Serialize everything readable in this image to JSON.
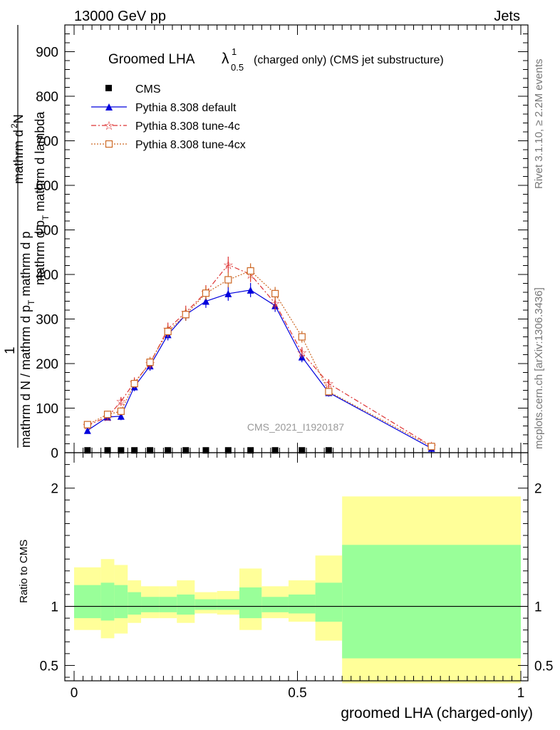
{
  "header": {
    "left": "13000 GeV pp",
    "right": "Jets"
  },
  "side": {
    "rivet": "Rivet 3.1.10, ≥ 2.2M events",
    "mcplots": "mcplots.cern.ch [arXiv:1306.3436]"
  },
  "chart_data": [
    {
      "type": "line",
      "title": {
        "main": "Groomed LHA",
        "symbol": "λ",
        "sup": "1",
        "sub": "0.5",
        "rest": "(charged only) (CMS jet substructure)"
      },
      "ylabel": {
        "numerator": "1",
        "denominator": "mathrm d N / mathrm d p",
        "denominator_sub": "T",
        "denominator_rest": "mathrm d p",
        "rhs_top": "mathrm d",
        "rhs_top_sup": "2",
        "rhs_top_rest": "N",
        "rhs_bottom": "mathrm d p",
        "rhs_bottom_sub": "T",
        "rhs_bottom_rest": " mathrm d lambda"
      },
      "xlim": [
        -0.02,
        1.02
      ],
      "ylim": [
        0,
        960
      ],
      "yticks": [
        0,
        100,
        200,
        300,
        400,
        500,
        600,
        700,
        800,
        900
      ],
      "ytick_labels": [
        "0",
        "100",
        "200",
        "300",
        "400",
        "500",
        "600",
        "700",
        "800",
        "900"
      ],
      "watermark": "CMS_2021_I1920187",
      "legend_position": "top-left",
      "x": [
        0.03,
        0.075,
        0.105,
        0.135,
        0.17,
        0.21,
        0.25,
        0.295,
        0.345,
        0.395,
        0.45,
        0.51,
        0.57,
        0.8
      ],
      "series": [
        {
          "name": "CMS",
          "color": "#000000",
          "marker": "square",
          "values": [
            2,
            2,
            2,
            2,
            2,
            2,
            2,
            2,
            2,
            2,
            2,
            2,
            2,
            null
          ]
        },
        {
          "name": "Pythia 8.308 default",
          "color": "#0000dd",
          "marker": "triangle",
          "linestyle": "solid",
          "values": [
            50,
            80,
            82,
            148,
            195,
            265,
            310,
            340,
            357,
            365,
            330,
            215,
            135,
            10
          ],
          "errors": [
            5,
            8,
            9,
            10,
            11,
            13,
            14,
            15,
            16,
            16,
            14,
            12,
            9,
            5
          ]
        },
        {
          "name": "Pythia 8.308 tune-4c",
          "color": "#dd3333",
          "marker": "star",
          "linestyle": "dashdot",
          "values": [
            62,
            80,
            115,
            158,
            200,
            278,
            315,
            360,
            422,
            400,
            335,
            225,
            155,
            15
          ],
          "errors": [
            5,
            8,
            10,
            11,
            12,
            14,
            15,
            16,
            18,
            17,
            15,
            12,
            10,
            5
          ]
        },
        {
          "name": "Pythia 8.308 tune-4cx",
          "color": "#cc6622",
          "marker": "open-square",
          "linestyle": "dotted",
          "values": [
            63,
            86,
            93,
            155,
            203,
            272,
            310,
            358,
            388,
            408,
            357,
            260,
            137,
            14
          ],
          "errors": [
            5,
            8,
            9,
            10,
            12,
            13,
            14,
            15,
            17,
            17,
            15,
            13,
            9,
            5
          ]
        }
      ]
    },
    {
      "type": "area",
      "ylabel": "Ratio to CMS",
      "xlabel": "groomed LHA (charged-only)",
      "ylim": [
        0.37,
        2.3
      ],
      "yticks": [
        0.5,
        1,
        2
      ],
      "ytick_labels": [
        "0.5",
        "1",
        "2"
      ],
      "xticks": [
        0,
        0.5,
        1
      ],
      "xtick_labels": [
        "0",
        "0.5",
        "1"
      ],
      "reference_line": 1,
      "bins": [
        {
          "x0": 0.0,
          "x1": 0.06,
          "inner": [
            0.9,
            1.18
          ],
          "outer": [
            0.8,
            1.33
          ]
        },
        {
          "x0": 0.06,
          "x1": 0.09,
          "inner": [
            0.88,
            1.2
          ],
          "outer": [
            0.73,
            1.4
          ]
        },
        {
          "x0": 0.09,
          "x1": 0.12,
          "inner": [
            0.9,
            1.18
          ],
          "outer": [
            0.77,
            1.35
          ]
        },
        {
          "x0": 0.12,
          "x1": 0.15,
          "inner": [
            0.93,
            1.12
          ],
          "outer": [
            0.86,
            1.22
          ]
        },
        {
          "x0": 0.15,
          "x1": 0.19,
          "inner": [
            0.95,
            1.08
          ],
          "outer": [
            0.9,
            1.17
          ]
        },
        {
          "x0": 0.19,
          "x1": 0.23,
          "inner": [
            0.95,
            1.08
          ],
          "outer": [
            0.9,
            1.17
          ]
        },
        {
          "x0": 0.23,
          "x1": 0.27,
          "inner": [
            0.93,
            1.1
          ],
          "outer": [
            0.86,
            1.22
          ]
        },
        {
          "x0": 0.27,
          "x1": 0.32,
          "inner": [
            0.97,
            1.06
          ],
          "outer": [
            0.94,
            1.12
          ]
        },
        {
          "x0": 0.32,
          "x1": 0.37,
          "inner": [
            0.97,
            1.06
          ],
          "outer": [
            0.93,
            1.13
          ]
        },
        {
          "x0": 0.37,
          "x1": 0.42,
          "inner": [
            0.9,
            1.16
          ],
          "outer": [
            0.8,
            1.32
          ]
        },
        {
          "x0": 0.42,
          "x1": 0.48,
          "inner": [
            0.95,
            1.08
          ],
          "outer": [
            0.9,
            1.17
          ]
        },
        {
          "x0": 0.48,
          "x1": 0.54,
          "inner": [
            0.94,
            1.1
          ],
          "outer": [
            0.87,
            1.22
          ]
        },
        {
          "x0": 0.54,
          "x1": 0.6,
          "inner": [
            0.87,
            1.2
          ],
          "outer": [
            0.71,
            1.43
          ]
        },
        {
          "x0": 0.6,
          "x1": 1.0,
          "inner": [
            0.56,
            1.52
          ],
          "outer": [
            0.35,
            1.93
          ]
        }
      ],
      "colors": {
        "inner": "#99ff99",
        "outer": "#ffff99"
      }
    }
  ]
}
